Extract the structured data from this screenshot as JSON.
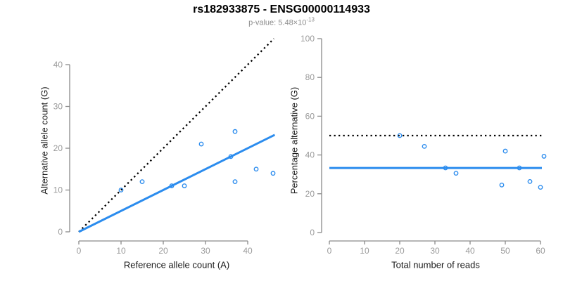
{
  "header": {
    "title": "rs182933875 - ENSG00000114933",
    "subtitle_prefix": "p-value: 5.48×10",
    "subtitle_exponent": "-13"
  },
  "colors": {
    "point_blue": "#2b8cee",
    "fit_line_blue": "#2b8cee",
    "reference_line_black": "#000000",
    "axis_gray": "#8a8a8a",
    "tick_label_gray": "#9a9a9a",
    "axis_title_black": "#1a1a1a",
    "subtitle_gray": "#8c8c8c"
  },
  "chart_data": [
    {
      "id": "allele-count-scatter",
      "type": "scatter",
      "xlabel": "Reference allele count (A)",
      "ylabel": "Alternative allele count (G)",
      "xticks": [
        0,
        10,
        20,
        30,
        40
      ],
      "yticks": [
        0,
        10,
        20,
        30,
        40
      ],
      "xlim": [
        0,
        46.5
      ],
      "ylim": [
        0,
        46.2
      ],
      "grid": false,
      "legend": "none",
      "points": [
        [
          10,
          10
        ],
        [
          15,
          12
        ],
        [
          22,
          11
        ],
        [
          25,
          11
        ],
        [
          29,
          21
        ],
        [
          36,
          18
        ],
        [
          37,
          24
        ],
        [
          37,
          12
        ],
        [
          42,
          15
        ],
        [
          46,
          14
        ]
      ],
      "lines": [
        {
          "name": "identity-line",
          "style": "dotted",
          "color": "#000000",
          "x1": 0,
          "y1": 0,
          "x2": 46.2,
          "y2": 46.2
        },
        {
          "name": "fit-line",
          "style": "solid",
          "color": "#2b8cee",
          "x1": 0,
          "y1": 0,
          "x2": 46.4,
          "y2": 23.2
        }
      ]
    },
    {
      "id": "percentage-alternative-scatter",
      "type": "scatter",
      "xlabel": "Total number of reads",
      "ylabel": "Percentage alternative (G)",
      "xticks": [
        0,
        10,
        20,
        30,
        40,
        50,
        60
      ],
      "yticks": [
        0,
        20,
        40,
        60,
        80,
        100
      ],
      "xlim": [
        0,
        60.5
      ],
      "ylim": [
        0,
        100
      ],
      "grid": false,
      "legend": "none",
      "points": [
        [
          20,
          50
        ],
        [
          27,
          44.44
        ],
        [
          33,
          33.33
        ],
        [
          36,
          30.56
        ],
        [
          50,
          42
        ],
        [
          54,
          33.33
        ],
        [
          61,
          39.34
        ],
        [
          49,
          24.49
        ],
        [
          57,
          26.32
        ],
        [
          60,
          23.33
        ]
      ],
      "lines": [
        {
          "name": "fifty-percent-line",
          "style": "dotted",
          "color": "#000000",
          "x1": 0,
          "y1": 50,
          "x2": 60.4,
          "y2": 50
        },
        {
          "name": "fit-line",
          "style": "solid",
          "color": "#2b8cee",
          "x1": 0,
          "y1": 33.3,
          "x2": 60.4,
          "y2": 33.3
        }
      ]
    }
  ]
}
